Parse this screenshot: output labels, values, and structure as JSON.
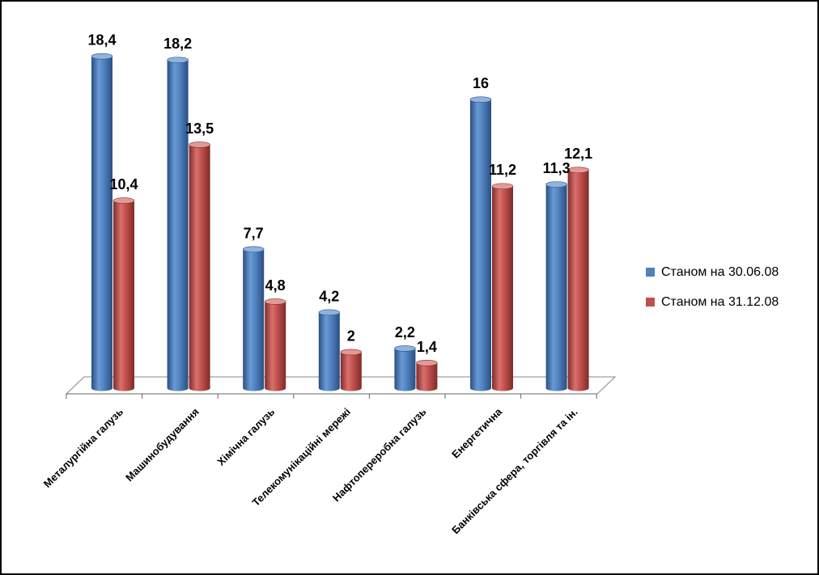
{
  "chart_data": {
    "type": "bar",
    "style": "3d-cylinder",
    "categories": [
      "Металургійна галузь",
      "Машинобудування",
      "Хімічна галузь",
      "Телекомунікаційні мережі",
      "Нафтопереробна галузь",
      "Енергетична",
      "Банківська сфера, торгівля та ін."
    ],
    "series": [
      {
        "name": "Станом на 30.06.08",
        "color": "#4f81bd",
        "values": [
          18.4,
          18.2,
          7.7,
          4.2,
          2.2,
          16,
          11.3
        ],
        "labels": [
          "18,4",
          "18,2",
          "7,7",
          "4,2",
          "2,2",
          "16",
          "11,3"
        ]
      },
      {
        "name": "Станом на 31.12.08",
        "color": "#c0504d",
        "values": [
          10.4,
          13.5,
          4.8,
          2,
          1.4,
          11.2,
          12.1
        ],
        "labels": [
          "10,4",
          "13,5",
          "4,8",
          "2",
          "1,4",
          "11,2",
          "12,1"
        ]
      }
    ],
    "ylim": [
      0,
      20
    ],
    "grid": false,
    "legend_position": "right"
  }
}
